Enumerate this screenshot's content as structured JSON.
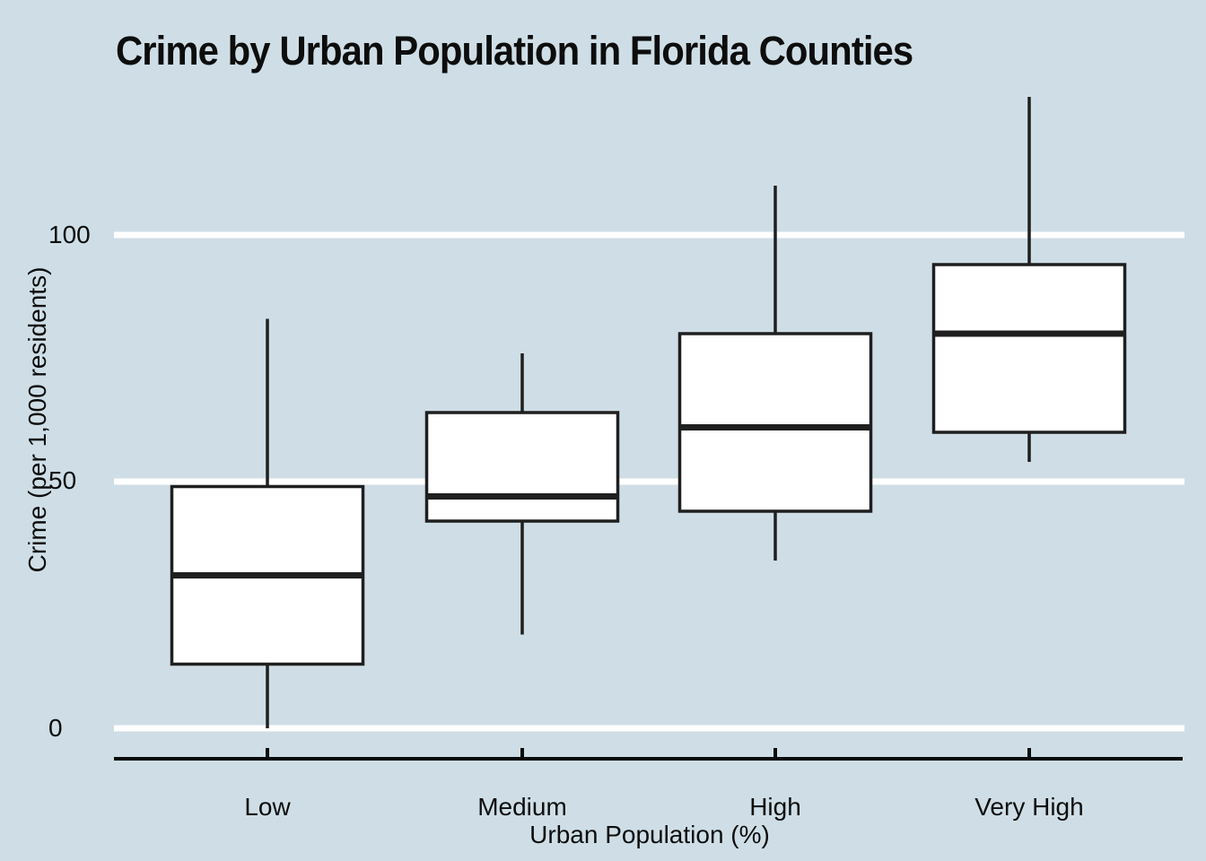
{
  "colors": {
    "background": "#cfdee6",
    "gridline": "#ffffff",
    "box_fill": "#ffffff",
    "box_stroke": "#1f1f1f",
    "axis": "#0a0a0a",
    "text": "#0d0d0d"
  },
  "chart_data": {
    "type": "boxplot",
    "title": "Crime by Urban Population in Florida Counties",
    "xlabel": "Urban Population (%)",
    "ylabel": "Crime (per 1,000 residents)",
    "categories": [
      "Low",
      "Medium",
      "High",
      "Very High"
    ],
    "y_ticks": [
      0,
      50,
      100
    ],
    "ylim": [
      -6,
      148
    ],
    "grid": "horizontal white gridlines at y ticks, light blue panel background, black bottom axis with upward tick marks",
    "legend": "none",
    "series": [
      {
        "category": "Low",
        "min": 0,
        "q1": 13,
        "median": 31,
        "q3": 49,
        "max": 83
      },
      {
        "category": "Medium",
        "min": 19,
        "q1": 42,
        "median": 47,
        "q3": 64,
        "max": 76
      },
      {
        "category": "High",
        "min": 34,
        "q1": 44,
        "median": 61,
        "q3": 80,
        "max": 110
      },
      {
        "category": "Very High",
        "min": 54,
        "q1": 60,
        "median": 80,
        "q3": 94,
        "max": 128
      }
    ]
  }
}
